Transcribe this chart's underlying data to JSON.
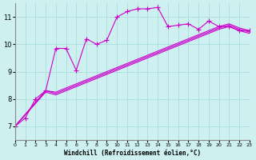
{
  "xlabel": "Windchill (Refroidissement éolien,°C)",
  "ylabel": "",
  "background_color": "#cef0f0",
  "grid_color": "#aadddd",
  "line_color": "#cc00cc",
  "xlim": [
    0,
    23
  ],
  "ylim": [
    6.5,
    11.5
  ],
  "yticks": [
    7,
    8,
    9,
    10,
    11
  ],
  "xticks": [
    0,
    1,
    2,
    3,
    4,
    5,
    6,
    7,
    8,
    9,
    10,
    11,
    12,
    13,
    14,
    15,
    16,
    17,
    18,
    19,
    20,
    21,
    22,
    23
  ],
  "series": [
    {
      "x": [
        0,
        1,
        2,
        3,
        4,
        5,
        6,
        7,
        8,
        9,
        10,
        11,
        12,
        13,
        14,
        15,
        16,
        17,
        18,
        19,
        20,
        21,
        22,
        23
      ],
      "y": [
        7.0,
        7.3,
        8.0,
        8.3,
        9.85,
        9.85,
        9.05,
        10.2,
        10.0,
        10.15,
        11.0,
        11.2,
        11.3,
        11.3,
        11.35,
        10.65,
        10.7,
        10.75,
        10.55,
        10.85,
        10.65,
        10.65,
        10.5,
        10.5
      ],
      "marker": "+"
    },
    {
      "x": [
        0,
        3,
        4,
        5,
        6,
        7,
        8,
        9,
        10,
        11,
        12,
        13,
        14,
        15,
        16,
        17,
        18,
        19,
        20,
        21,
        22,
        23
      ],
      "y": [
        7.0,
        8.3,
        8.25,
        8.4,
        8.55,
        8.7,
        8.85,
        9.0,
        9.15,
        9.3,
        9.45,
        9.6,
        9.75,
        9.9,
        10.05,
        10.2,
        10.35,
        10.5,
        10.65,
        10.75,
        10.6,
        10.5
      ],
      "marker": ""
    },
    {
      "x": [
        0,
        3,
        4,
        5,
        6,
        7,
        8,
        9,
        10,
        11,
        12,
        13,
        14,
        15,
        16,
        17,
        18,
        19,
        20,
        21,
        22,
        23
      ],
      "y": [
        7.0,
        8.3,
        8.2,
        8.35,
        8.5,
        8.65,
        8.8,
        8.95,
        9.1,
        9.25,
        9.4,
        9.55,
        9.7,
        9.85,
        10.0,
        10.15,
        10.3,
        10.45,
        10.6,
        10.7,
        10.55,
        10.45
      ],
      "marker": ""
    },
    {
      "x": [
        0,
        3,
        4,
        5,
        6,
        7,
        8,
        9,
        10,
        11,
        12,
        13,
        14,
        15,
        16,
        17,
        18,
        19,
        20,
        21,
        22,
        23
      ],
      "y": [
        7.0,
        8.25,
        8.15,
        8.3,
        8.45,
        8.6,
        8.75,
        8.9,
        9.05,
        9.2,
        9.35,
        9.5,
        9.65,
        9.8,
        9.95,
        10.1,
        10.25,
        10.4,
        10.55,
        10.65,
        10.5,
        10.4
      ],
      "marker": ""
    }
  ]
}
